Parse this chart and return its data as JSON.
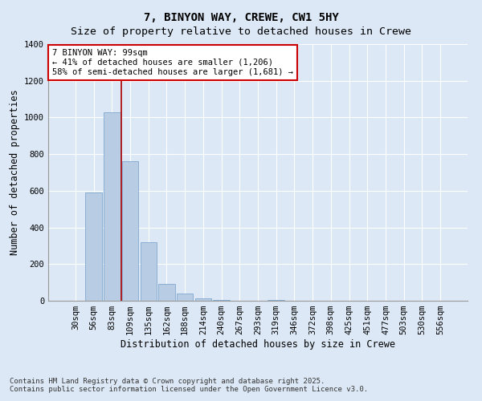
{
  "title_line1": "7, BINYON WAY, CREWE, CW1 5HY",
  "title_line2": "Size of property relative to detached houses in Crewe",
  "xlabel": "Distribution of detached houses by size in Crewe",
  "ylabel": "Number of detached properties",
  "categories": [
    "30sqm",
    "56sqm",
    "83sqm",
    "109sqm",
    "135sqm",
    "162sqm",
    "188sqm",
    "214sqm",
    "240sqm",
    "267sqm",
    "293sqm",
    "319sqm",
    "346sqm",
    "372sqm",
    "398sqm",
    "425sqm",
    "451sqm",
    "477sqm",
    "503sqm",
    "530sqm",
    "556sqm"
  ],
  "values": [
    2,
    590,
    1030,
    760,
    320,
    90,
    40,
    15,
    5,
    0,
    0,
    5,
    0,
    0,
    0,
    0,
    0,
    0,
    0,
    0,
    0
  ],
  "bar_color": "#b8cce4",
  "bar_edge_color": "#7fa8d0",
  "vline_x_index": 2.5,
  "vline_color": "#aa0000",
  "annotation_text_line1": "7 BINYON WAY: 99sqm",
  "annotation_text_line2": "← 41% of detached houses are smaller (1,206)",
  "annotation_text_line3": "58% of semi-detached houses are larger (1,681) →",
  "annotation_box_color": "#ffffff",
  "annotation_box_edge": "#cc0000",
  "ylim": [
    0,
    1400
  ],
  "yticks": [
    0,
    200,
    400,
    600,
    800,
    1000,
    1200,
    1400
  ],
  "bg_color": "#dce8f5",
  "plot_bg_color": "#dce8f5",
  "footer_line1": "Contains HM Land Registry data © Crown copyright and database right 2025.",
  "footer_line2": "Contains public sector information licensed under the Open Government Licence v3.0.",
  "title_fontsize": 10,
  "subtitle_fontsize": 9.5,
  "axis_label_fontsize": 8.5,
  "tick_fontsize": 7.5,
  "annotation_fontsize": 7.5,
  "footer_fontsize": 6.5
}
